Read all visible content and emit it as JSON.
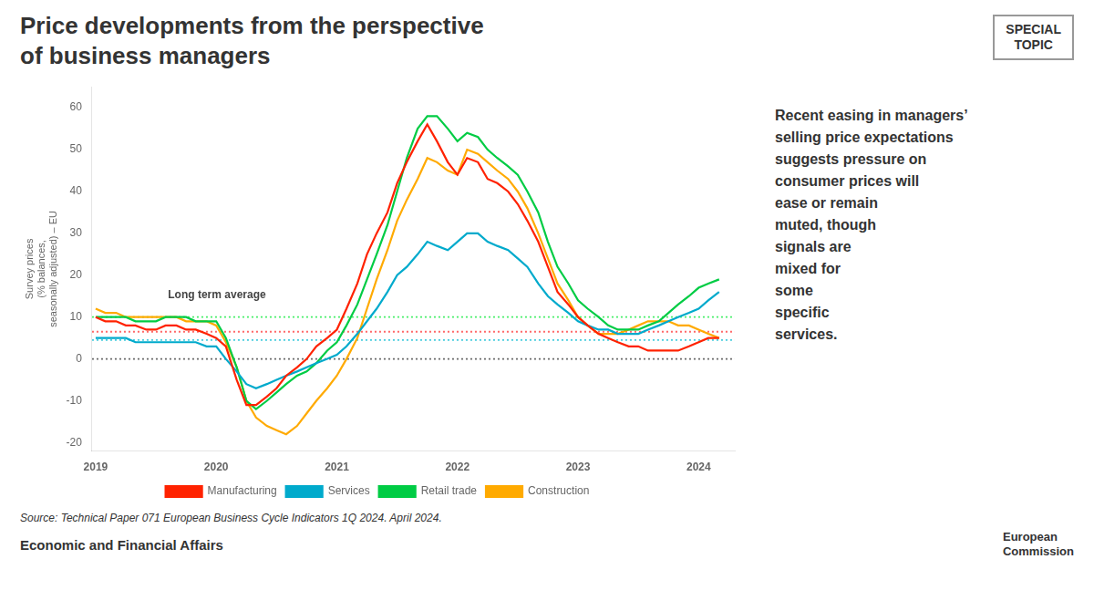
{
  "chart_data": {
    "type": "line",
    "title": "Price developments from the perspective\nof business managers",
    "ylabel": "Survey prices\n(% balances,\nseasonally adjusted) – EU",
    "x": [
      2019.0,
      2019.08,
      2019.17,
      2019.25,
      2019.33,
      2019.42,
      2019.5,
      2019.58,
      2019.67,
      2019.75,
      2019.83,
      2019.92,
      2020.0,
      2020.08,
      2020.17,
      2020.25,
      2020.33,
      2020.42,
      2020.5,
      2020.58,
      2020.67,
      2020.75,
      2020.83,
      2020.92,
      2021.0,
      2021.08,
      2021.17,
      2021.25,
      2021.33,
      2021.42,
      2021.5,
      2021.58,
      2021.67,
      2021.75,
      2021.83,
      2021.92,
      2022.0,
      2022.08,
      2022.17,
      2022.25,
      2022.33,
      2022.42,
      2022.5,
      2022.58,
      2022.67,
      2022.75,
      2022.83,
      2022.92,
      2023.0,
      2023.08,
      2023.17,
      2023.25,
      2023.33,
      2023.42,
      2023.5,
      2023.58,
      2023.67,
      2023.75,
      2023.83,
      2023.92,
      2024.0,
      2024.08,
      2024.17
    ],
    "series": [
      {
        "name": "Manufacturing",
        "color": "#ff2200",
        "values": [
          10,
          9,
          9,
          8,
          8,
          7,
          7,
          8,
          8,
          7,
          7,
          6,
          5,
          3,
          -5,
          -11,
          -11,
          -9,
          -7,
          -4,
          -2,
          0,
          3,
          5,
          7,
          12,
          18,
          25,
          30,
          35,
          42,
          47,
          52,
          56,
          52,
          47,
          44,
          48,
          47,
          43,
          42,
          40,
          37,
          33,
          28,
          22,
          16,
          13,
          10,
          8,
          6,
          5,
          4,
          3,
          3,
          2,
          2,
          2,
          2,
          3,
          4,
          5,
          5
        ]
      },
      {
        "name": "Services",
        "color": "#00aacc",
        "values": [
          5,
          5,
          5,
          5,
          4,
          4,
          4,
          4,
          4,
          4,
          4,
          3,
          3,
          0,
          -3,
          -6,
          -7,
          -6,
          -5,
          -4,
          -3,
          -2,
          -1,
          0,
          1,
          3,
          6,
          9,
          12,
          16,
          20,
          22,
          25,
          28,
          27,
          26,
          28,
          30,
          30,
          28,
          27,
          26,
          24,
          22,
          18,
          15,
          13,
          11,
          9,
          8,
          7,
          7,
          6,
          6,
          6,
          7,
          8,
          9,
          10,
          11,
          12,
          14,
          16
        ]
      },
      {
        "name": "Retail trade",
        "color": "#00cc44",
        "values": [
          10,
          10,
          10,
          10,
          9,
          9,
          9,
          10,
          10,
          10,
          9,
          9,
          9,
          5,
          -2,
          -10,
          -12,
          -10,
          -8,
          -6,
          -4,
          -3,
          -1,
          2,
          4,
          8,
          13,
          19,
          25,
          32,
          40,
          48,
          55,
          58,
          58,
          55,
          52,
          54,
          53,
          50,
          48,
          46,
          44,
          40,
          35,
          28,
          22,
          18,
          14,
          12,
          10,
          8,
          7,
          7,
          7,
          8,
          9,
          11,
          13,
          15,
          17,
          18,
          19
        ]
      },
      {
        "name": "Construction",
        "color": "#ffaa00",
        "values": [
          12,
          11,
          11,
          10,
          10,
          10,
          10,
          10,
          10,
          9,
          9,
          9,
          8,
          4,
          -2,
          -10,
          -14,
          -16,
          -17,
          -18,
          -16,
          -13,
          -10,
          -7,
          -4,
          0,
          5,
          12,
          19,
          26,
          33,
          38,
          43,
          48,
          47,
          45,
          44,
          50,
          49,
          47,
          45,
          43,
          40,
          36,
          30,
          24,
          18,
          14,
          10,
          8,
          6,
          6,
          6,
          7,
          8,
          9,
          9,
          9,
          8,
          8,
          7,
          6,
          5
        ]
      }
    ],
    "reference_lines": [
      {
        "value": 6.5,
        "color": "#ff6666",
        "line_style": "dotted"
      },
      {
        "value": 4.5,
        "color": "#44ccdd",
        "line_style": "dotted"
      },
      {
        "value": 10.0,
        "color": "#44ee66",
        "line_style": "dotted"
      },
      {
        "value": 0,
        "color": "#666666",
        "line_style": "dotted"
      }
    ],
    "annotations": [
      {
        "text": "Long term average",
        "x": 2019.6,
        "y": 14.0
      }
    ],
    "xlim": [
      2018.97,
      2024.3
    ],
    "xticks": [
      2019,
      2020,
      2021,
      2022,
      2023,
      2024
    ],
    "ylim": [
      -22,
      65
    ],
    "yticks": [
      -20,
      -10,
      0,
      10,
      20,
      30,
      40,
      50,
      60
    ],
    "grid": false,
    "legend": "bottom",
    "side_text": "Recent easing in managers’\nselling price expectations\nsuggests pressure on\nconsumer prices will\nease or remain\nmuted, though\nsignals are\nmixed for\nsome\nspecific\nservices.",
    "special_topic": "SPECIAL\nTOPIC",
    "source": "Source: Technical Paper 071 European Business Cycle Indicators 1Q 2024. April 2024.",
    "footer": "Economic and Financial Affairs",
    "logo_text": "European\nCommission"
  }
}
